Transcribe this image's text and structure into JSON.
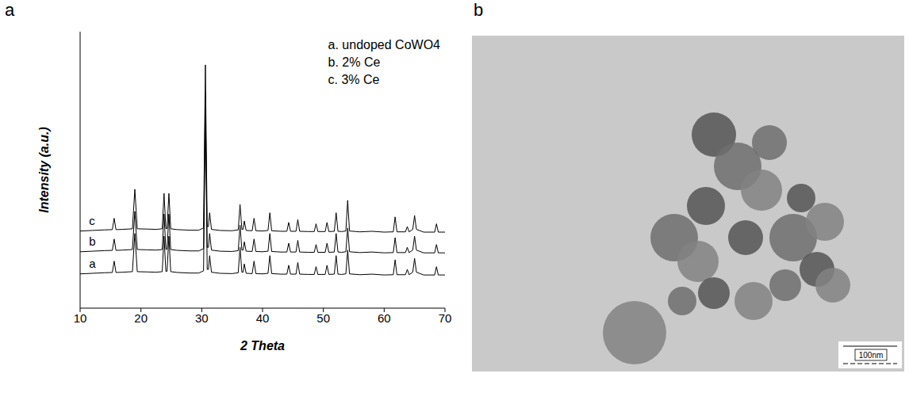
{
  "chart_data": [
    {
      "type": "line",
      "panel_label": "a",
      "xlabel": "2 Theta",
      "ylabel": "Intensity (a.u.)",
      "xlim": [
        10,
        70
      ],
      "xticks": [
        10,
        20,
        30,
        40,
        50,
        60,
        70
      ],
      "ylim": [
        0,
        100
      ],
      "tick_labels": "x",
      "grid": false,
      "legend": "upper right",
      "x": [
        10,
        12,
        14,
        15.3,
        15.6,
        15.9,
        17,
        18.6,
        19.0,
        19.4,
        21,
        22.5,
        23.5,
        23.8,
        24.1,
        24.3,
        24.6,
        24.9,
        26,
        28,
        29.5,
        30.3,
        30.6,
        30.9,
        31.1,
        31.3,
        31.6,
        33,
        35,
        36.0,
        36.3,
        36.6,
        36.8,
        37.0,
        37.3,
        38.3,
        38.6,
        38.9,
        40,
        40.9,
        41.2,
        41.5,
        43,
        44.0,
        44.3,
        44.6,
        45.5,
        45.8,
        46.1,
        47.5,
        48.5,
        48.8,
        49.1,
        50.3,
        50.6,
        50.9,
        51.8,
        52.1,
        52.4,
        53.0,
        53.7,
        54.0,
        54.3,
        56,
        58,
        60,
        61.5,
        61.8,
        62.1,
        63.5,
        63.8,
        64.1,
        64.7,
        65.0,
        65.3,
        66.5,
        68.3,
        68.6,
        68.9,
        70
      ],
      "series": [
        {
          "name": "a. undoped CoWO4",
          "label": "a",
          "color": "#000000",
          "values": [
            12.4,
            12.6,
            12.8,
            12.9,
            17,
            12.9,
            13.0,
            13.2,
            27,
            13.2,
            13.1,
            13.0,
            13.2,
            26,
            13.3,
            13.3,
            26,
            13.2,
            12.9,
            12.7,
            12.7,
            13.5,
            72,
            14,
            14,
            19,
            13,
            12.6,
            12.5,
            12.8,
            22,
            13,
            13,
            16,
            12.6,
            12.5,
            17,
            12.5,
            12.4,
            12.6,
            19,
            12.5,
            12.3,
            12.3,
            15.5,
            12.3,
            12.3,
            16.5,
            12.3,
            12.2,
            12.2,
            15,
            12.2,
            12.2,
            15.5,
            12.2,
            12.3,
            19,
            12.3,
            12.2,
            12.4,
            21,
            12.4,
            12.1,
            12.3,
            12.0,
            12.1,
            17.5,
            12.1,
            12.1,
            14,
            12.1,
            13,
            18,
            13,
            12.0,
            12.0,
            15,
            12.0,
            12.0
          ]
        },
        {
          "name": "b. 2% Ce",
          "label": "b",
          "color": "#000000",
          "values": [
            20.4,
            20.6,
            20.8,
            20.9,
            25,
            20.9,
            21.0,
            21.2,
            35,
            21.2,
            21.1,
            21.0,
            21.2,
            34,
            21.3,
            21.3,
            34,
            21.2,
            20.9,
            20.7,
            20.7,
            21.5,
            78,
            22,
            22,
            27,
            21,
            20.6,
            20.5,
            20.8,
            30,
            21,
            21,
            24,
            20.6,
            20.5,
            25,
            20.5,
            20.4,
            20.6,
            27,
            20.5,
            20.3,
            20.3,
            23.5,
            20.3,
            20.3,
            24.5,
            20.3,
            20.2,
            20.2,
            23,
            20.2,
            20.2,
            23.5,
            20.2,
            20.3,
            27,
            20.3,
            20.2,
            20.4,
            29,
            20.4,
            20.1,
            20.3,
            20.0,
            20.1,
            25.5,
            20.1,
            20.1,
            22,
            20.1,
            21,
            26,
            21,
            20.0,
            20.0,
            23,
            20.0,
            20.0
          ]
        },
        {
          "name": "c. 3% Ce",
          "label": "c",
          "color": "#000000",
          "values": [
            27.9,
            28.1,
            28.3,
            28.4,
            32.5,
            28.4,
            28.5,
            28.7,
            43,
            28.7,
            28.6,
            28.5,
            28.7,
            41.5,
            28.8,
            28.8,
            41.5,
            28.7,
            28.4,
            28.2,
            28.2,
            29,
            88,
            29.5,
            29.5,
            34.5,
            28.5,
            28.1,
            28,
            28.3,
            37.5,
            28.5,
            28.5,
            31.5,
            28.1,
            28,
            32.5,
            28,
            27.9,
            28.1,
            34.5,
            28,
            27.8,
            27.8,
            31,
            27.8,
            27.8,
            32,
            27.8,
            27.7,
            27.7,
            30.5,
            27.7,
            27.7,
            31,
            27.7,
            27.8,
            34.5,
            27.8,
            27.7,
            27.9,
            39,
            27.9,
            27.6,
            27.8,
            27.5,
            27.6,
            33,
            27.6,
            27.6,
            29.5,
            27.6,
            28.5,
            33.5,
            28.5,
            27.5,
            27.5,
            30.5,
            27.5,
            27.5
          ]
        }
      ]
    }
  ],
  "image": {
    "panel_label": "b",
    "scale_bar": "100nm"
  }
}
